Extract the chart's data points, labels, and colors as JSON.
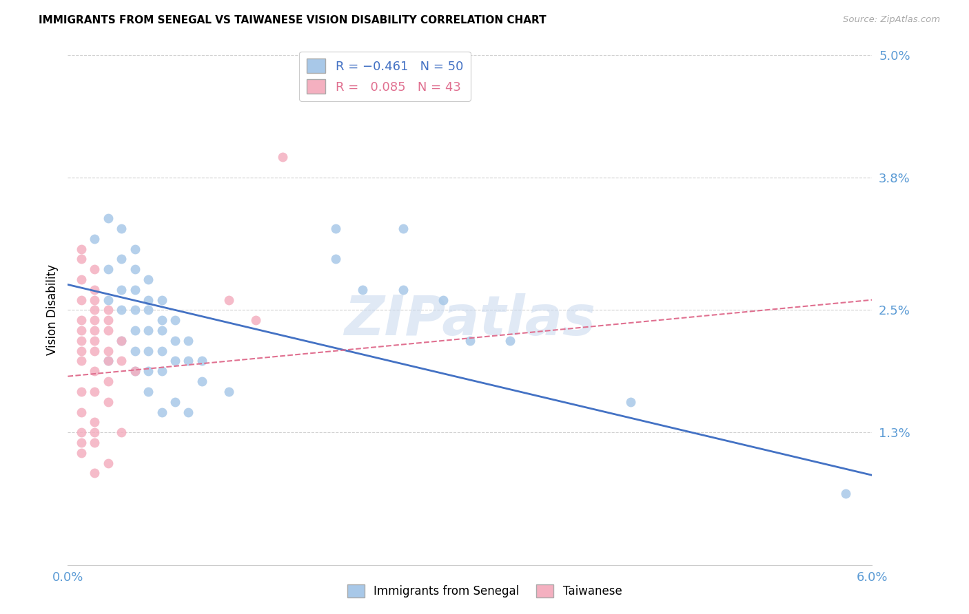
{
  "title": "IMMIGRANTS FROM SENEGAL VS TAIWANESE VISION DISABILITY CORRELATION CHART",
  "source": "Source: ZipAtlas.com",
  "ylabel": "Vision Disability",
  "xmin": 0.0,
  "xmax": 0.06,
  "ymin": 0.0,
  "ymax": 0.05,
  "yticks": [
    0.0,
    0.013,
    0.025,
    0.038,
    0.05
  ],
  "ytick_labels": [
    "",
    "1.3%",
    "2.5%",
    "3.8%",
    "5.0%"
  ],
  "xticks": [
    0.0,
    0.01,
    0.02,
    0.03,
    0.04,
    0.05,
    0.06
  ],
  "xtick_labels": [
    "0.0%",
    "",
    "",
    "",
    "",
    "",
    "6.0%"
  ],
  "legend_label1": "Immigrants from Senegal",
  "legend_label2": "Taiwanese",
  "blue_color": "#a8c8e8",
  "pink_color": "#f4b0c0",
  "blue_line_color": "#4472c4",
  "pink_line_color": "#e07090",
  "watermark": "ZIPatlas",
  "axis_color": "#5b9bd5",
  "blue_scatter": [
    [
      0.002,
      0.032
    ],
    [
      0.003,
      0.034
    ],
    [
      0.004,
      0.033
    ],
    [
      0.005,
      0.031
    ],
    [
      0.003,
      0.029
    ],
    [
      0.004,
      0.03
    ],
    [
      0.005,
      0.029
    ],
    [
      0.006,
      0.028
    ],
    [
      0.004,
      0.027
    ],
    [
      0.005,
      0.027
    ],
    [
      0.006,
      0.026
    ],
    [
      0.007,
      0.026
    ],
    [
      0.003,
      0.026
    ],
    [
      0.004,
      0.025
    ],
    [
      0.005,
      0.025
    ],
    [
      0.006,
      0.025
    ],
    [
      0.007,
      0.024
    ],
    [
      0.008,
      0.024
    ],
    [
      0.005,
      0.023
    ],
    [
      0.006,
      0.023
    ],
    [
      0.007,
      0.023
    ],
    [
      0.008,
      0.022
    ],
    [
      0.009,
      0.022
    ],
    [
      0.004,
      0.022
    ],
    [
      0.005,
      0.021
    ],
    [
      0.006,
      0.021
    ],
    [
      0.007,
      0.021
    ],
    [
      0.008,
      0.02
    ],
    [
      0.009,
      0.02
    ],
    [
      0.01,
      0.02
    ],
    [
      0.003,
      0.02
    ],
    [
      0.005,
      0.019
    ],
    [
      0.006,
      0.019
    ],
    [
      0.007,
      0.019
    ],
    [
      0.01,
      0.018
    ],
    [
      0.012,
      0.017
    ],
    [
      0.006,
      0.017
    ],
    [
      0.008,
      0.016
    ],
    [
      0.007,
      0.015
    ],
    [
      0.009,
      0.015
    ],
    [
      0.02,
      0.03
    ],
    [
      0.022,
      0.027
    ],
    [
      0.025,
      0.027
    ],
    [
      0.028,
      0.026
    ],
    [
      0.03,
      0.022
    ],
    [
      0.033,
      0.022
    ],
    [
      0.02,
      0.033
    ],
    [
      0.025,
      0.033
    ],
    [
      0.042,
      0.016
    ],
    [
      0.058,
      0.007
    ]
  ],
  "pink_scatter": [
    [
      0.001,
      0.031
    ],
    [
      0.001,
      0.03
    ],
    [
      0.002,
      0.029
    ],
    [
      0.001,
      0.028
    ],
    [
      0.002,
      0.027
    ],
    [
      0.001,
      0.026
    ],
    [
      0.002,
      0.026
    ],
    [
      0.002,
      0.025
    ],
    [
      0.003,
      0.025
    ],
    [
      0.001,
      0.024
    ],
    [
      0.002,
      0.024
    ],
    [
      0.003,
      0.024
    ],
    [
      0.001,
      0.023
    ],
    [
      0.002,
      0.023
    ],
    [
      0.003,
      0.023
    ],
    [
      0.004,
      0.022
    ],
    [
      0.001,
      0.022
    ],
    [
      0.002,
      0.022
    ],
    [
      0.003,
      0.021
    ],
    [
      0.001,
      0.021
    ],
    [
      0.002,
      0.021
    ],
    [
      0.003,
      0.02
    ],
    [
      0.004,
      0.02
    ],
    [
      0.001,
      0.02
    ],
    [
      0.002,
      0.019
    ],
    [
      0.005,
      0.019
    ],
    [
      0.003,
      0.018
    ],
    [
      0.001,
      0.017
    ],
    [
      0.002,
      0.017
    ],
    [
      0.003,
      0.016
    ],
    [
      0.001,
      0.015
    ],
    [
      0.002,
      0.014
    ],
    [
      0.001,
      0.013
    ],
    [
      0.002,
      0.013
    ],
    [
      0.004,
      0.013
    ],
    [
      0.001,
      0.012
    ],
    [
      0.002,
      0.012
    ],
    [
      0.001,
      0.011
    ],
    [
      0.003,
      0.01
    ],
    [
      0.002,
      0.009
    ],
    [
      0.012,
      0.026
    ],
    [
      0.014,
      0.024
    ],
    [
      0.016,
      0.04
    ]
  ],
  "blue_trend_x": [
    0.0,
    0.06
  ],
  "blue_trend_y": [
    0.0275,
    0.0088
  ],
  "pink_trend_x": [
    0.0,
    0.06
  ],
  "pink_trend_y": [
    0.0185,
    0.026
  ]
}
